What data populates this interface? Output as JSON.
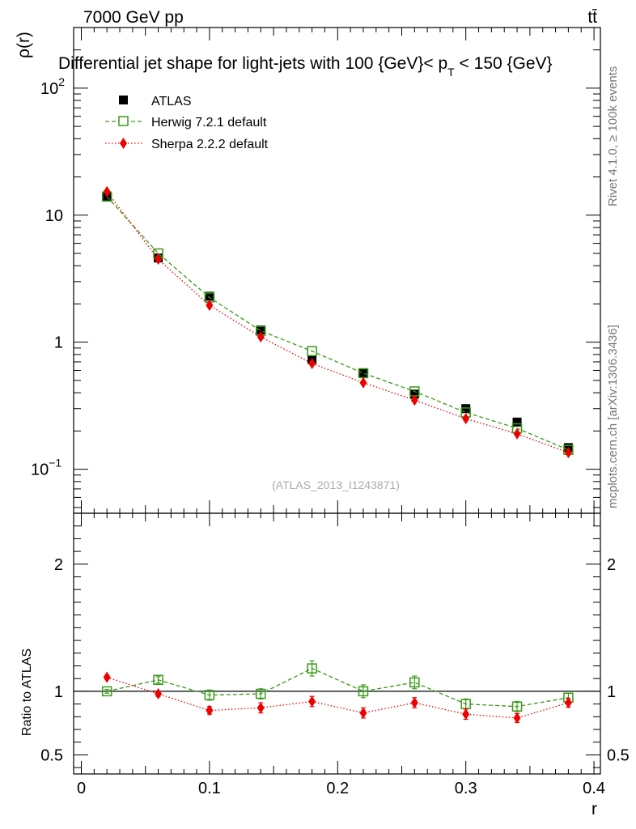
{
  "header": {
    "energy_label": "7000 GeV pp",
    "process_label": "tt̄",
    "title_main": "Differential jet shape for light-jets with 100 {GeV}< p",
    "title_sub": "T",
    "title_end": " < 150 {GeV}",
    "watermark": "(ATLAS_2013_I1243871)",
    "side_text_top": "Rivet 4.1.0, ≥ 100k events",
    "side_text_bottom": "mcplots.cern.ch [arXiv:1306.3436]"
  },
  "chart_data": [
    {
      "type": "scatter",
      "panel": "main",
      "ylabel": "ρ(r)",
      "yscale": "log",
      "ylim": [
        0.045,
        300
      ],
      "xlim": [
        -0.006,
        0.405
      ],
      "x_ticks": [
        0,
        0.1,
        0.2,
        0.3,
        0.4
      ],
      "y_ticks": [
        {
          "value": 0.1,
          "label": "10",
          "exp": "−1"
        },
        {
          "value": 1,
          "label": "1",
          "exp": ""
        },
        {
          "value": 10,
          "label": "10",
          "exp": ""
        },
        {
          "value": 100,
          "label": "10",
          "exp": "2"
        }
      ],
      "legend_position": "top-left",
      "x": [
        0.02,
        0.06,
        0.1,
        0.14,
        0.18,
        0.22,
        0.26,
        0.3,
        0.34,
        0.38
      ],
      "series": [
        {
          "name": "ATLAS",
          "color": "#000000",
          "marker": "filled-square",
          "line": "none",
          "values": [
            14.0,
            4.6,
            2.3,
            1.25,
            0.73,
            0.57,
            0.39,
            0.3,
            0.235,
            0.148
          ]
        },
        {
          "name": "Herwig 7.2.1 default",
          "color": "#3a9a1a",
          "marker": "open-square",
          "line": "dashed",
          "values": [
            14.0,
            5.0,
            2.25,
            1.23,
            0.85,
            0.57,
            0.41,
            0.28,
            0.21,
            0.142
          ]
        },
        {
          "name": "Sherpa 2.2.2 default",
          "color": "#ee0000",
          "marker": "filled-diamond",
          "line": "dotted",
          "values": [
            15.3,
            4.5,
            1.95,
            1.1,
            0.68,
            0.48,
            0.35,
            0.25,
            0.19,
            0.135
          ]
        }
      ]
    },
    {
      "type": "scatter",
      "panel": "ratio",
      "xlabel": "r",
      "ylabel": "Ratio to ATLAS",
      "ylim": [
        0.35,
        2.4
      ],
      "xlim": [
        -0.006,
        0.405
      ],
      "y_ticks": [
        {
          "value": 0.5,
          "label": "0.5"
        },
        {
          "value": 1,
          "label": "1"
        },
        {
          "value": 2,
          "label": "2"
        }
      ],
      "x_ticks": [
        {
          "value": 0,
          "label": "0"
        },
        {
          "value": 0.1,
          "label": "0.1"
        },
        {
          "value": 0.2,
          "label": "0.2"
        },
        {
          "value": 0.3,
          "label": "0.3"
        },
        {
          "value": 0.4,
          "label": "0.4"
        }
      ],
      "x": [
        0.02,
        0.06,
        0.1,
        0.14,
        0.18,
        0.22,
        0.26,
        0.3,
        0.34,
        0.38
      ],
      "series": [
        {
          "name": "Herwig 7.2.1 default",
          "color": "#3a9a1a",
          "marker": "open-square",
          "line": "dashed",
          "values": [
            1.0,
            1.09,
            0.97,
            0.98,
            1.18,
            1.0,
            1.07,
            0.9,
            0.88,
            0.95
          ],
          "errors": [
            0.015,
            0.025,
            0.04,
            0.04,
            0.06,
            0.05,
            0.05,
            0.04,
            0.04,
            0.035
          ]
        },
        {
          "name": "Sherpa 2.2.2 default",
          "color": "#ee0000",
          "marker": "filled-diamond",
          "line": "dotted",
          "values": [
            1.11,
            0.98,
            0.85,
            0.87,
            0.92,
            0.83,
            0.91,
            0.82,
            0.79,
            0.91
          ],
          "errors": [
            0.015,
            0.02,
            0.03,
            0.04,
            0.04,
            0.04,
            0.04,
            0.04,
            0.035,
            0.035
          ]
        }
      ]
    }
  ]
}
